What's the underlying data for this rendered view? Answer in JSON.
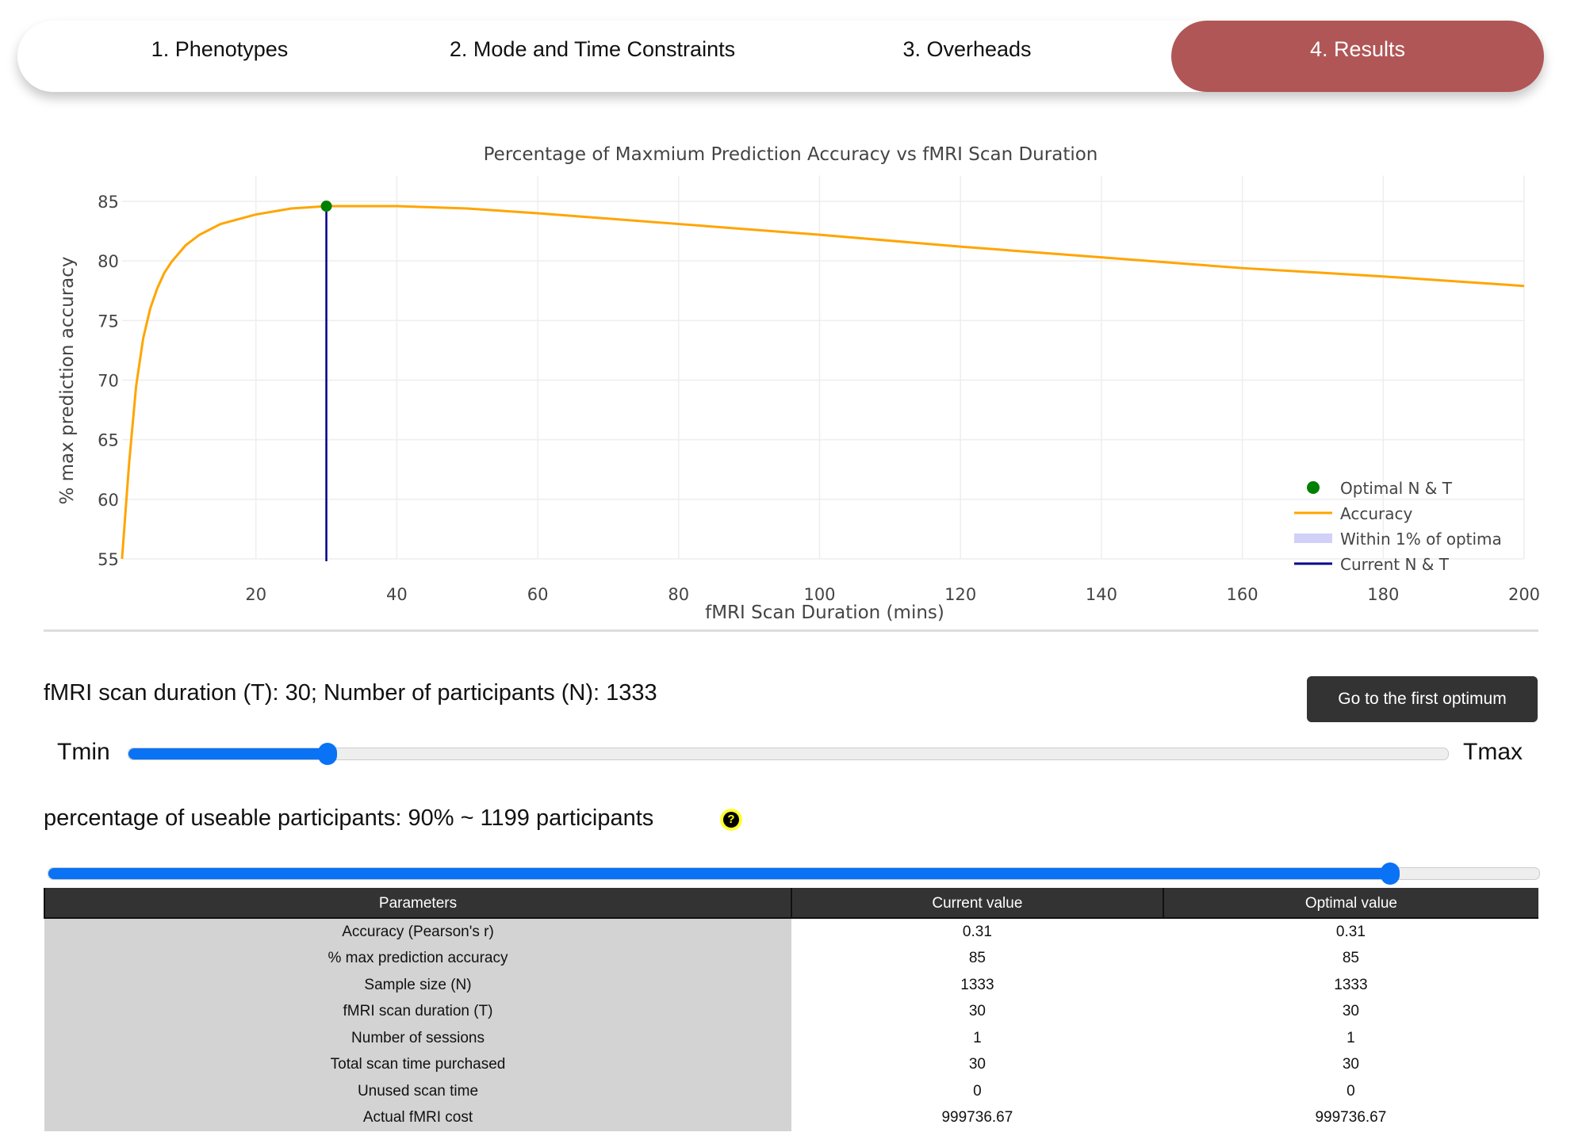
{
  "tabs": [
    {
      "label": "1. Phenotypes"
    },
    {
      "label": "2. Mode and Time Constraints"
    },
    {
      "label": "3. Overheads"
    },
    {
      "label": "4. Results"
    }
  ],
  "chart_data": {
    "type": "line",
    "title": "Percentage of Maxmium Prediction Accuracy vs fMRI Scan Duration",
    "xlabel": "fMRI Scan Duration (mins)",
    "ylabel": "% max prediction accuracy",
    "xlim": [
      0,
      200
    ],
    "ylim": [
      55,
      86.5
    ],
    "xticks": [
      20,
      40,
      60,
      80,
      100,
      120,
      140,
      160,
      180,
      200
    ],
    "yticks": [
      55,
      60,
      65,
      70,
      75,
      80,
      85
    ],
    "grid": true,
    "legend_position": "bottom-right",
    "series": [
      {
        "name": "Accuracy",
        "color": "#ffa500",
        "x": [
          1,
          2,
          3,
          4,
          5,
          6,
          7,
          8,
          10,
          12,
          15,
          20,
          25,
          30,
          40,
          50,
          60,
          80,
          100,
          120,
          140,
          160,
          180,
          200
        ],
        "y": [
          55,
          63,
          69.5,
          73.5,
          76,
          77.7,
          79,
          79.9,
          81.3,
          82.2,
          83.1,
          83.9,
          84.4,
          84.6,
          84.6,
          84.4,
          84.0,
          83.1,
          82.2,
          81.2,
          80.3,
          79.4,
          78.7,
          77.9
        ]
      },
      {
        "name": "Optimal N & T",
        "color": "#008000",
        "x": [
          30
        ],
        "y": [
          84.6
        ]
      },
      {
        "name": "Current N & T",
        "color": "#00008b",
        "x": [
          30,
          30
        ],
        "y": [
          55,
          84.6
        ]
      }
    ],
    "legend": [
      {
        "label": "Optimal N & T",
        "color": "#008000",
        "kind": "dot"
      },
      {
        "label": "Accuracy",
        "color": "#ffa500",
        "kind": "line"
      },
      {
        "label": "Within 1% of optima",
        "color": "#d0d0f8",
        "kind": "band"
      },
      {
        "label": "Current N & T",
        "color": "#00008b",
        "kind": "line"
      }
    ]
  },
  "status": {
    "text": "fMRI scan duration (T): 30; Number of participants (N): 1333"
  },
  "button": {
    "label": "Go to the first optimum"
  },
  "slider_t": {
    "min_label": "Tmin",
    "max_label": "Tmax",
    "value": 30,
    "min": 1,
    "max": 200
  },
  "useable": {
    "text": "percentage of useable participants: 90% ~ 1199 participants",
    "help": "?",
    "value_pct": 90
  },
  "table": {
    "headers": [
      "Parameters",
      "Current value",
      "Optimal value"
    ],
    "rows": [
      [
        "Accuracy (Pearson's r)",
        "0.31",
        "0.31"
      ],
      [
        "% max prediction accuracy",
        "85",
        "85"
      ],
      [
        "Sample size (N)",
        "1333",
        "1333"
      ],
      [
        "fMRI scan duration (T)",
        "30",
        "30"
      ],
      [
        "Number of sessions",
        "1",
        "1"
      ],
      [
        "Total scan time purchased",
        "30",
        "30"
      ],
      [
        "Unused scan time",
        "0",
        "0"
      ],
      [
        "Actual fMRI cost",
        "999736.67",
        "999736.67"
      ]
    ]
  }
}
